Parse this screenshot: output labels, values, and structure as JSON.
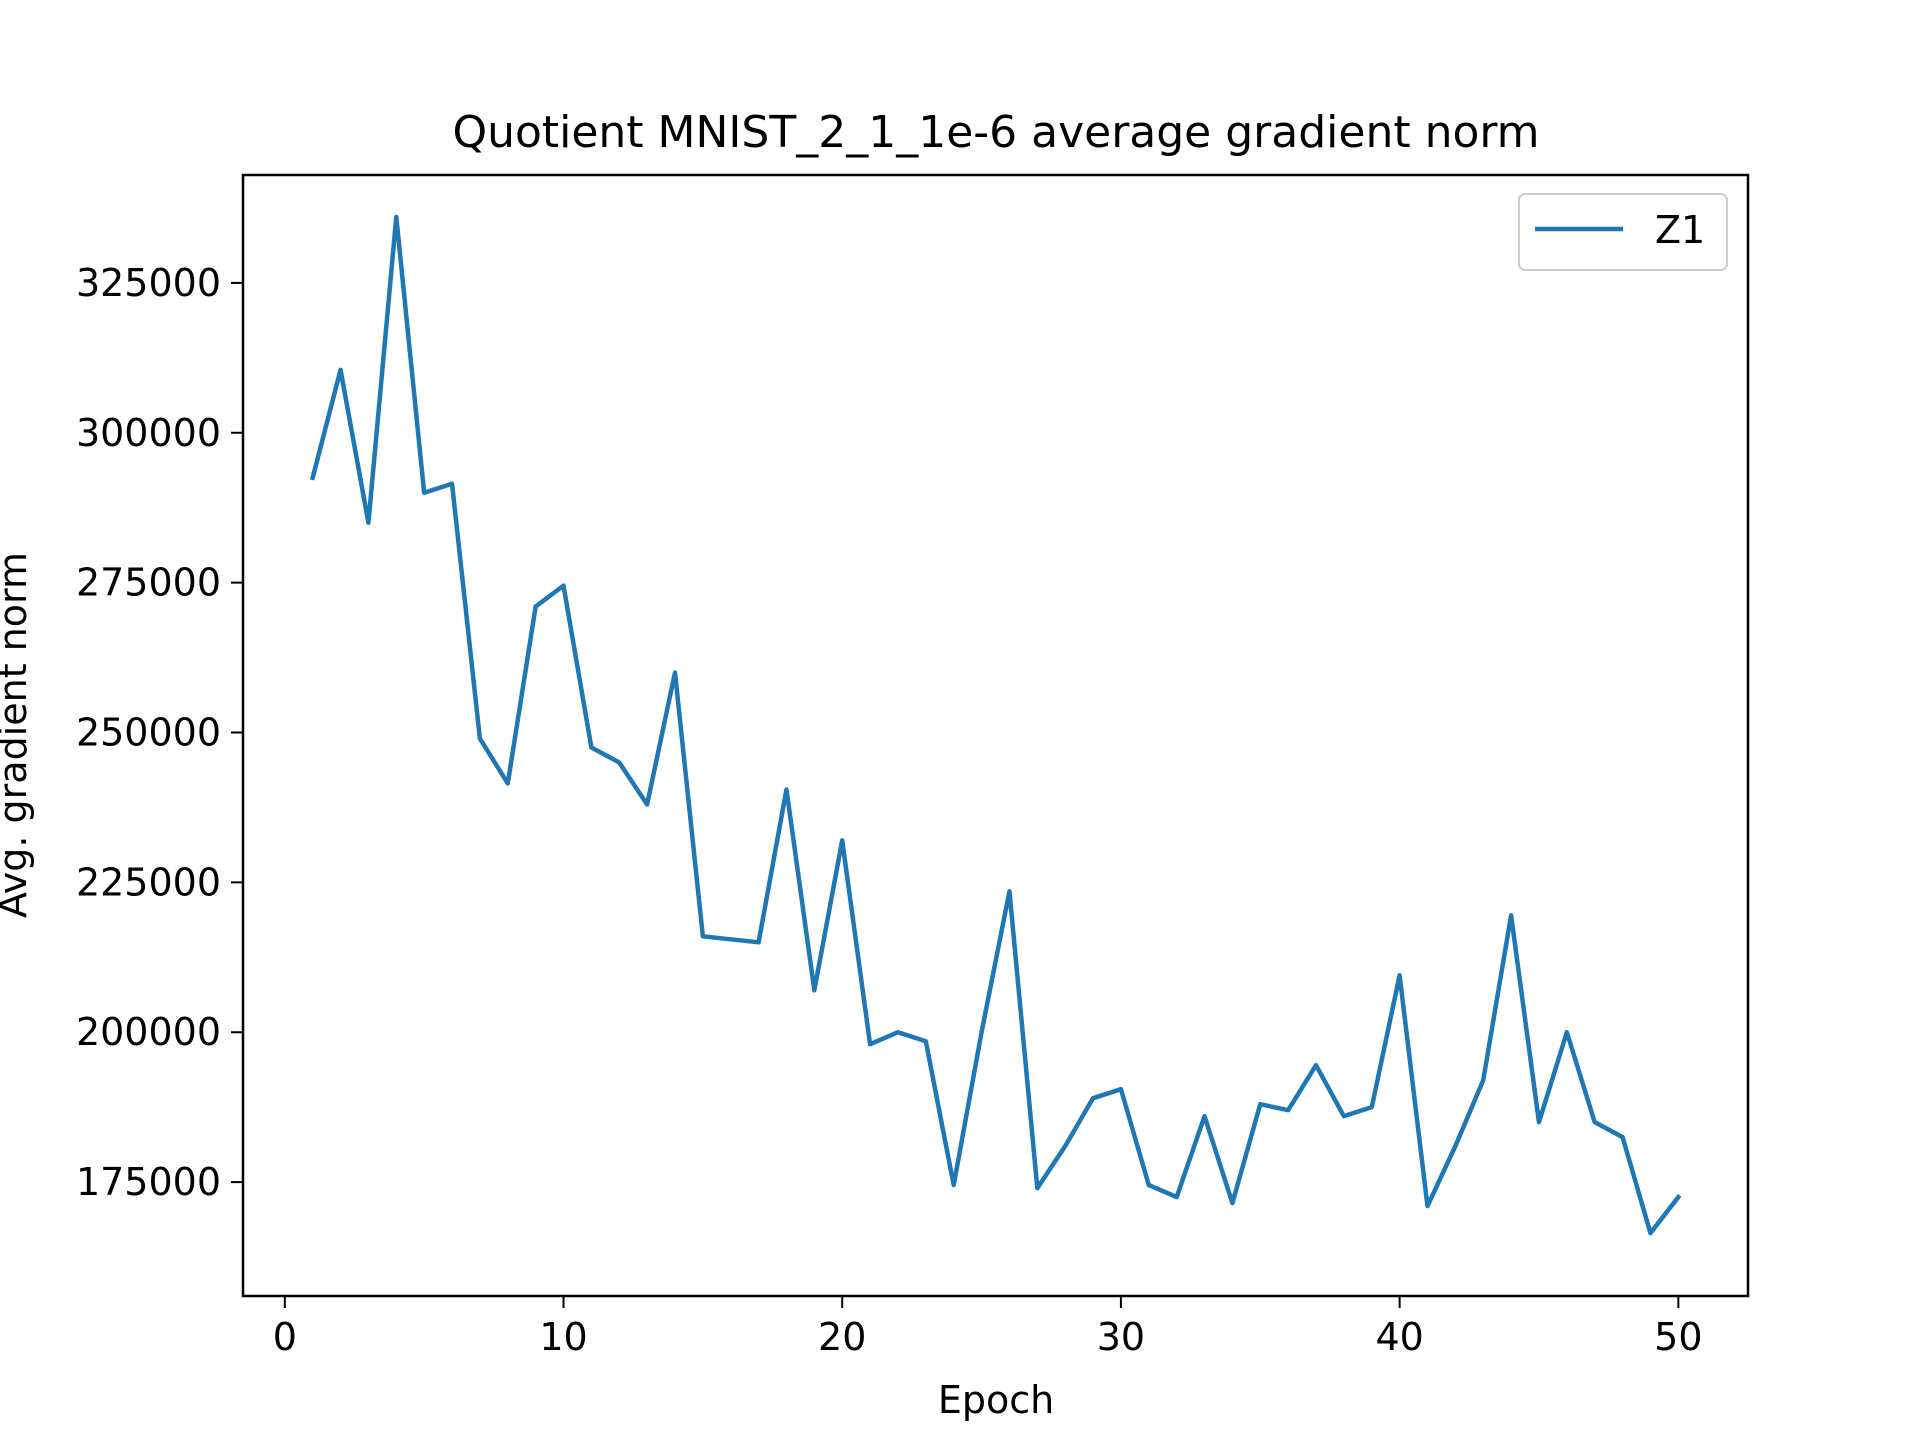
{
  "chart_data": {
    "type": "line",
    "title": "Quotient MNIST_2_1_1e-6 average gradient norm",
    "xlabel": "Epoch",
    "ylabel": "Avg. gradient norm",
    "xlim": [
      -1.5,
      52.5
    ],
    "ylim": [
      156000,
      343000
    ],
    "xticks": [
      0,
      10,
      20,
      30,
      40,
      50
    ],
    "yticks": [
      175000,
      200000,
      225000,
      250000,
      275000,
      300000,
      325000
    ],
    "grid": false,
    "legend_position": "top-right",
    "series": [
      {
        "name": "Z1",
        "color": "#1f77b4",
        "x": [
          1,
          2,
          3,
          4,
          5,
          6,
          7,
          8,
          9,
          10,
          11,
          12,
          13,
          14,
          15,
          16,
          17,
          18,
          19,
          20,
          21,
          22,
          23,
          24,
          25,
          26,
          27,
          28,
          29,
          30,
          31,
          32,
          33,
          34,
          35,
          36,
          37,
          38,
          39,
          40,
          41,
          42,
          43,
          44,
          45,
          46,
          47,
          48,
          49,
          50
        ],
        "y": [
          292500,
          310500,
          285000,
          336000,
          290000,
          291500,
          249000,
          241500,
          271000,
          274500,
          247500,
          245000,
          238000,
          260000,
          216000,
          215500,
          215000,
          240500,
          207000,
          232000,
          198000,
          200000,
          198500,
          174500,
          200000,
          223500,
          174000,
          181000,
          189000,
          190500,
          174500,
          172500,
          186000,
          171500,
          188000,
          187000,
          194500,
          186000,
          187500,
          209500,
          171000,
          181000,
          192000,
          219500,
          185000,
          200000,
          185000,
          182500,
          166500,
          172500
        ]
      }
    ]
  }
}
